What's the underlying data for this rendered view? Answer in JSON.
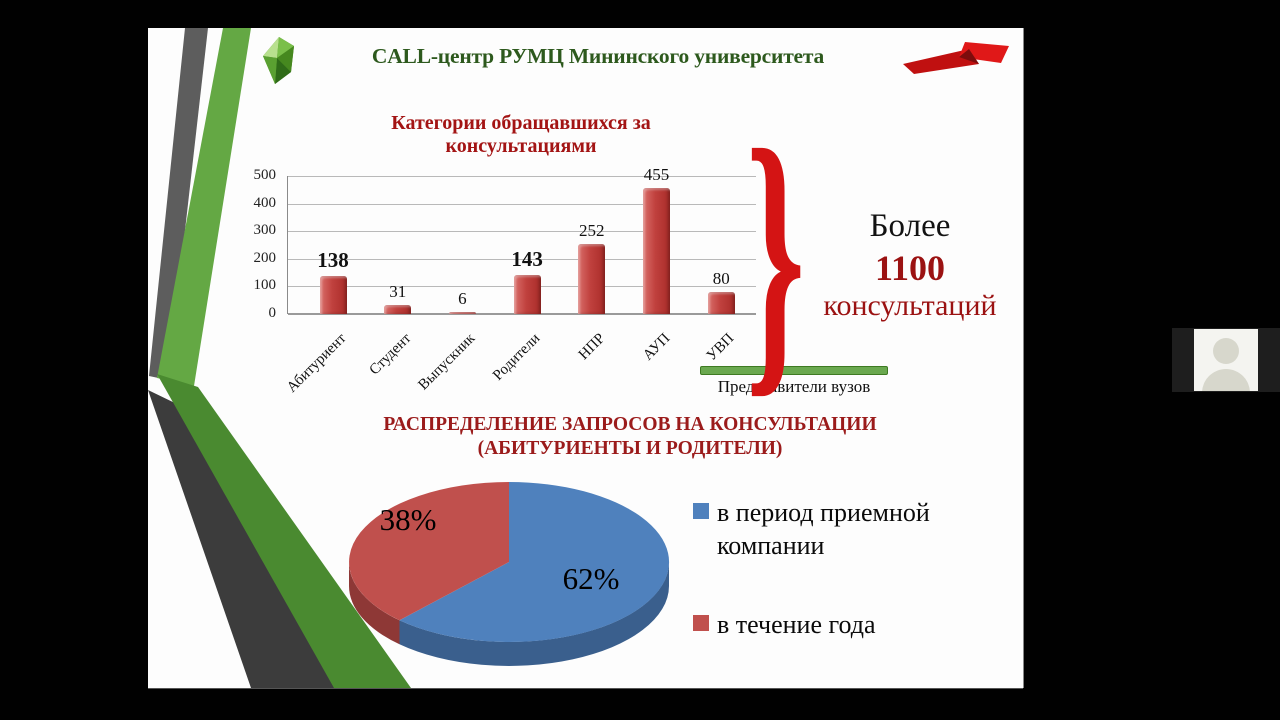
{
  "slide": {
    "header": {
      "title": "CALL-центр РУМЦ Мининского университета",
      "color": "#2d591d"
    },
    "logos": {
      "left": "green-gem-university-logo",
      "right": "red-ribbon-logo"
    }
  },
  "annotation": {
    "prefix": "Более",
    "number": "1100",
    "suffix": "консультаций",
    "brace": "}"
  },
  "chart_data": [
    {
      "type": "bar",
      "title": "Категории обращавшихся за консультациями",
      "title_lines": [
        "Категории обращавшихся за",
        "консультациями"
      ],
      "categories": [
        "Абитуриент",
        "Студент",
        "Выпускник",
        "Родители",
        "НПР",
        "АУП",
        "УВП"
      ],
      "values": [
        138,
        31,
        6,
        143,
        252,
        455,
        80
      ],
      "emphasized_indices": [
        0,
        3
      ],
      "ylim": [
        0,
        500
      ],
      "yticks": [
        0,
        100,
        200,
        300,
        400,
        500
      ],
      "grid": true,
      "bar_color": "#c0413e",
      "group_annotation": {
        "label": "Представители вузов",
        "covers": [
          "НПР",
          "АУП",
          "УВП"
        ],
        "band_color": "#6aa84f"
      }
    },
    {
      "type": "pie",
      "title": "РАСПРЕДЕЛЕНИЕ ЗАПРОСОВ НА КОНСУЛЬТАЦИИ (АБИТУРИЕНТЫ И РОДИТЕЛИ)",
      "title_lines": [
        "РАСПРЕДЕЛЕНИЕ ЗАПРОСОВ НА КОНСУЛЬТАЦИИ",
        "(АБИТУРИЕНТЫ И РОДИТЕЛИ)"
      ],
      "slices": [
        {
          "label": "в период приемной компании",
          "value": 62,
          "display": "62%",
          "color": "#4f81bd",
          "side_color": "#3a5f8d"
        },
        {
          "label": "в течение года",
          "value": 38,
          "display": "38%",
          "color": "#c0504d",
          "side_color": "#8e3836"
        }
      ],
      "legend_position": "right",
      "effect": "3d"
    }
  ],
  "webcam": {
    "placeholder": "participant-avatar"
  }
}
